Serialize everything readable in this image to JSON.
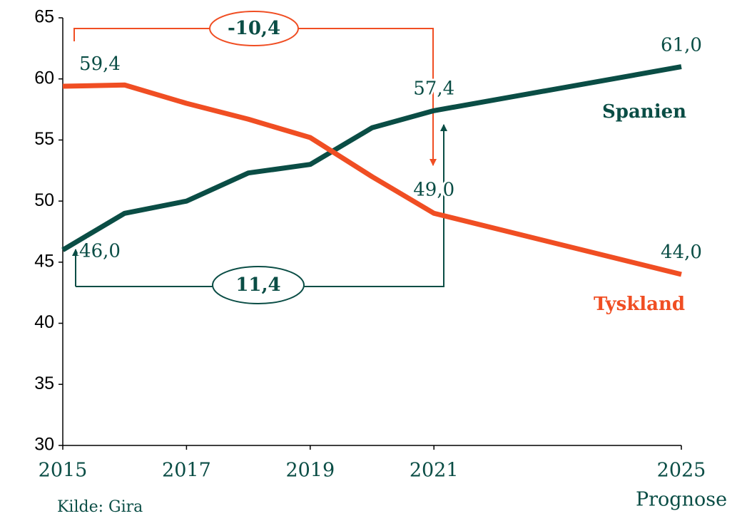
{
  "chart_data": {
    "type": "line",
    "xlim": [
      2015,
      2025
    ],
    "xticks": [
      2015,
      2017,
      2019,
      2021,
      2025
    ],
    "ylim": [
      30,
      65
    ],
    "yticks": [
      30,
      35,
      40,
      45,
      50,
      55,
      60,
      65
    ],
    "grid": false,
    "series": [
      {
        "name": "Spanien",
        "color": "#0a4d45",
        "x": [
          2015,
          2016,
          2017,
          2018,
          2019,
          2020,
          2021,
          2025
        ],
        "values": [
          46.0,
          49.0,
          50.0,
          52.3,
          53.0,
          56.0,
          57.4,
          61.0
        ],
        "value_labels": [
          "46,0",
          null,
          null,
          null,
          null,
          null,
          "57,4",
          "61,0"
        ]
      },
      {
        "name": "Tyskland",
        "color": "#f04e23",
        "x": [
          2015,
          2016,
          2017,
          2018,
          2019,
          2020,
          2021,
          2025
        ],
        "values": [
          59.4,
          59.5,
          58.0,
          56.7,
          55.2,
          52.0,
          49.0,
          44.0
        ],
        "value_labels": [
          "59,4",
          null,
          null,
          null,
          null,
          null,
          "49,0",
          "44,0"
        ]
      }
    ],
    "annotations": [
      {
        "text": "-10,4",
        "color": "#f04e23"
      },
      {
        "text": "11,4",
        "color": "#0a4d45"
      }
    ],
    "x_note": "Prognose",
    "source": "Kilde: Gira"
  }
}
